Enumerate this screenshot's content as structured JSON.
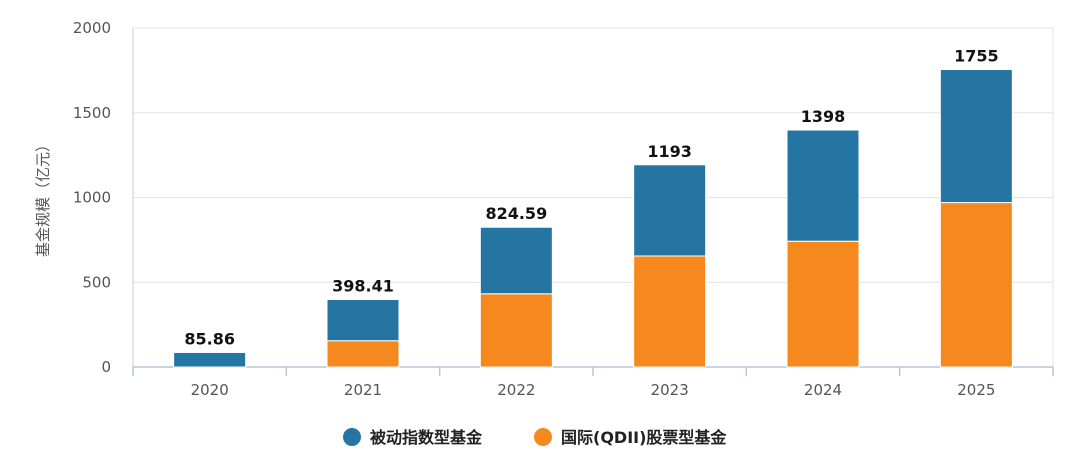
{
  "chart_data": {
    "type": "bar",
    "stacked": true,
    "categories": [
      "2020",
      "2021",
      "2022",
      "2023",
      "2024",
      "2025"
    ],
    "series": [
      {
        "name": "国际(QDII)股票型基金",
        "color": "#f5891d",
        "values": [
          0,
          155,
          432,
          655,
          742,
          970
        ]
      },
      {
        "name": "被动指数型基金",
        "color": "#2475a2",
        "values": [
          85.86,
          243.41,
          392.59,
          538,
          656,
          785
        ]
      }
    ],
    "totals": [
      "85.86",
      "398.41",
      "824.59",
      "1193",
      "1398",
      "1755"
    ],
    "ylabel": "基金规模（亿元）",
    "ylim": [
      0,
      2000
    ],
    "yticks": [
      0,
      500,
      1000,
      1500,
      2000
    ],
    "grid": true,
    "legend_position": "bottom",
    "legend_order": [
      "被动指数型基金",
      "国际(QDII)股票型基金"
    ]
  }
}
